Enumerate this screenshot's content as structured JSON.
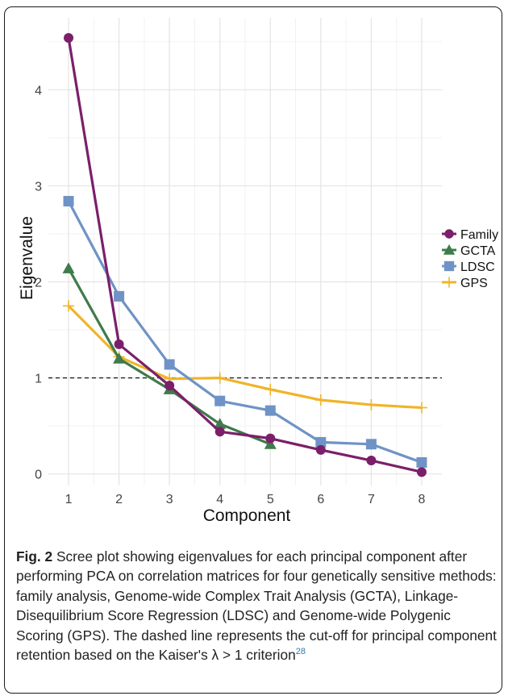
{
  "chart_data": {
    "type": "line",
    "xlabel": "Component",
    "ylabel": "Eigenvalue",
    "x": [
      1,
      2,
      3,
      4,
      5,
      6,
      7,
      8
    ],
    "xticks": [
      "1",
      "2",
      "3",
      "4",
      "5",
      "6",
      "7",
      "8"
    ],
    "yticks": [
      "0",
      "1",
      "2",
      "3",
      "4"
    ],
    "xlim": [
      0.6,
      8.4
    ],
    "ylim": [
      -0.12,
      4.75
    ],
    "grid": true,
    "legend_position": "right",
    "reference_line": {
      "y": 1,
      "style": "dashed"
    },
    "series": [
      {
        "name": "Family",
        "color": "#7b1f6a",
        "marker": "circle",
        "values": [
          4.54,
          1.35,
          0.92,
          0.44,
          0.37,
          0.25,
          0.14,
          0.02
        ]
      },
      {
        "name": "GCTA",
        "color": "#3f7b4b",
        "marker": "triangle",
        "values": [
          2.14,
          1.2,
          0.88,
          0.52,
          0.31,
          null,
          null,
          null
        ]
      },
      {
        "name": "LDSC",
        "color": "#6f93c6",
        "marker": "square",
        "values": [
          2.84,
          1.85,
          1.14,
          0.76,
          0.66,
          0.33,
          0.31,
          0.12
        ]
      },
      {
        "name": "GPS",
        "color": "#f0b429",
        "marker": "plus",
        "values": [
          1.75,
          1.22,
          0.99,
          1.0,
          0.88,
          0.77,
          0.72,
          0.69
        ]
      }
    ]
  },
  "caption": {
    "label": "Fig. 2",
    "text": " Scree plot showing eigenvalues for each principal component after performing PCA on correlation matrices for four genetically sensitive methods: family analysis, Genome-wide Complex Trait Analysis (GCTA), Linkage-Disequilibrium Score Regression (LDSC) and Genome-wide Polygenic Scoring (GPS). The dashed line represents the cut-off for principal component retention based on the Kaiser's λ > 1 criterion",
    "ref": "28"
  }
}
